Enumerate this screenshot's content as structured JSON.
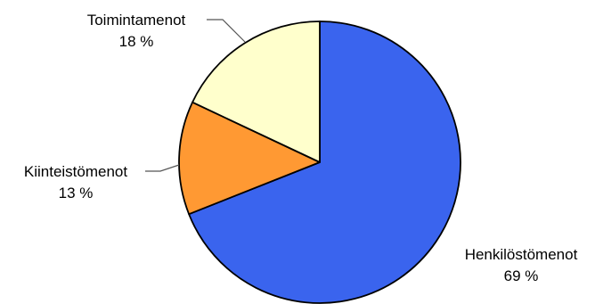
{
  "chart_data": {
    "type": "pie",
    "slices": [
      {
        "label": "Henkilöstömenot",
        "value": 69,
        "value_label": "69 %",
        "color": "#3a64ee"
      },
      {
        "label": "Kiinteistömenot",
        "value": 13,
        "value_label": "13 %",
        "color": "#ff9933"
      },
      {
        "label": "Toimintamenot",
        "value": 18,
        "value_label": "18 %",
        "color": "#ffffcc"
      }
    ],
    "start": "12 o'clock",
    "direction": "clockwise",
    "legend": "none",
    "labels": "outside with leader lines"
  }
}
